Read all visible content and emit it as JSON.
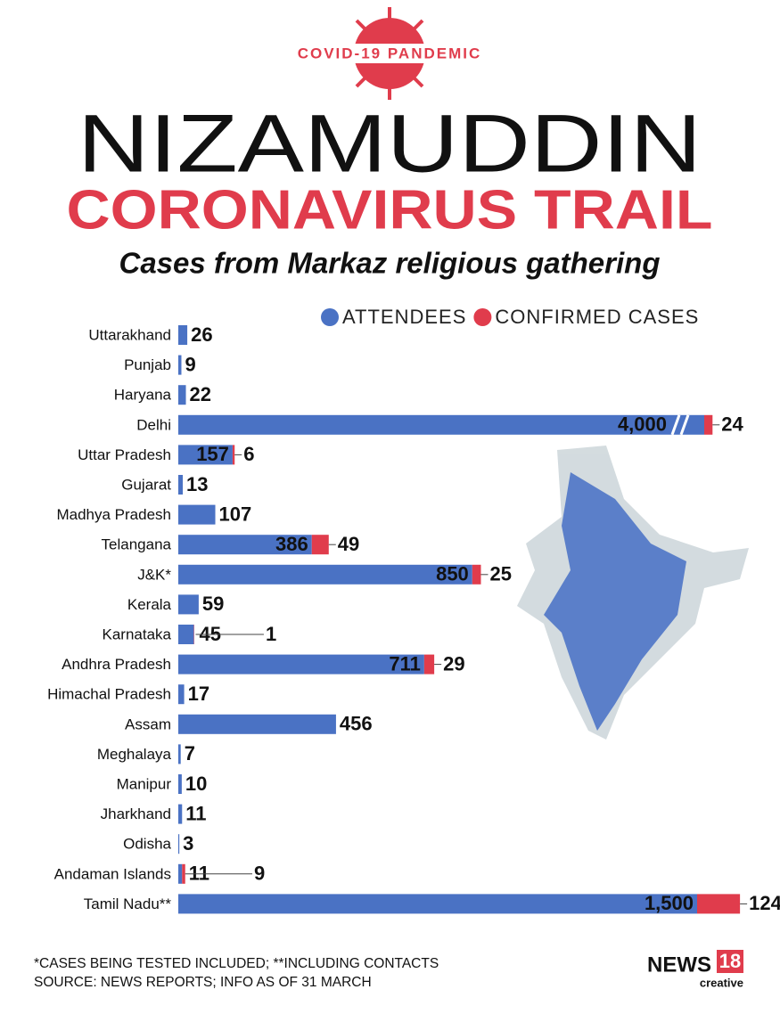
{
  "chart_data": {
    "type": "bar",
    "badge": "COVID-19 PANDEMIC",
    "title": "NIZAMUDDIN",
    "subtitle": "CORONAVIRUS TRAIL",
    "caption": "Cases from Markaz religious gathering",
    "categories": [
      "Uttarakhand",
      "Punjab",
      "Haryana",
      "Delhi",
      "Uttar Pradesh",
      "Gujarat",
      "Madhya Pradesh",
      "Telangana",
      "J&K*",
      "Kerala",
      "Karnataka",
      "Andhra Pradesh",
      "Himachal Pradesh",
      "Assam",
      "Meghalaya",
      "Manipur",
      "Jharkhand",
      "Odisha",
      "Andaman Islands",
      "Tamil Nadu**"
    ],
    "series": [
      {
        "name": "ATTENDEES",
        "color": "#4a72c4",
        "values": [
          26,
          9,
          22,
          4000,
          157,
          13,
          107,
          386,
          850,
          59,
          45,
          711,
          17,
          456,
          7,
          10,
          11,
          3,
          11,
          1500
        ],
        "value_labels": [
          "26",
          "9",
          "22",
          "4,000",
          "157",
          "13",
          "107",
          "386",
          "850",
          "59",
          "45",
          "711",
          "17",
          "456",
          "7",
          "10",
          "11",
          "3",
          "11",
          "1,500"
        ]
      },
      {
        "name": "CONFIRMED CASES",
        "color": "#e03c4c",
        "values": [
          null,
          null,
          null,
          24,
          6,
          null,
          null,
          49,
          25,
          null,
          1,
          29,
          null,
          null,
          null,
          null,
          null,
          null,
          9,
          124
        ]
      }
    ],
    "legend": "top-right",
    "footnotes": [
      "*CASES BEING TESTED INCLUDED; **INCLUDING CONTACTS",
      "SOURCE: NEWS REPORTS; INFO AS OF 31 MARCH"
    ],
    "logo": {
      "brand": "NEWS",
      "number": "18",
      "tag": "creative"
    }
  }
}
